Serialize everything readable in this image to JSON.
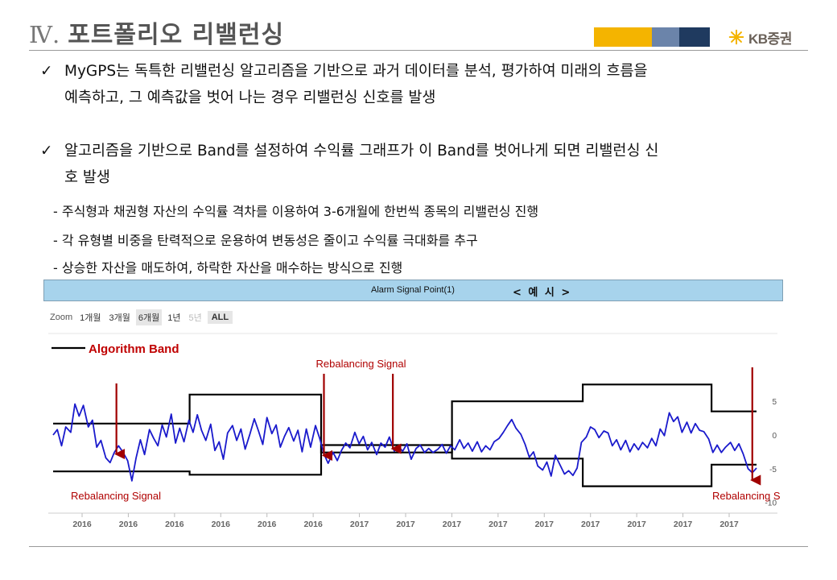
{
  "slide": {
    "section_number": "Ⅳ.",
    "title": "포트폴리오 리밸런싱",
    "stripe_colors": [
      "#f4b400",
      "#6b84aa",
      "#1f3a5f"
    ],
    "logo_text": "KB증권",
    "logo_color": "#f4b400"
  },
  "bullets": [
    {
      "check": "✓",
      "line1": "MyGPS는 독특한 리밸런싱 알고리즘을 기반으로 과거 데이터를 분석, 평가하여 미래의 흐름을",
      "line2": "예측하고,    그 예측값을 벗어 나는 경우 리밸런싱 신호를 발생"
    },
    {
      "check": "✓",
      "line1": "알고리즘을 기반으로 Band를 설정하여 수익률 그래프가 이 Band를 벗어나게 되면 리밸런싱 신",
      "line2": "호 발생"
    }
  ],
  "sub_points": [
    "- 주식형과 채권형 자산의 수익률 격차를 이용하여 3-6개월에 한번씩 종목의 리밸런싱 진행",
    "- 각 유형별 비중을 탄력적으로 운용하여 변동성은 줄이고 수익률 극대화를 추구",
    "- 상승한 자산을 매도하여, 하락한 자산을 매수하는 방식으로 진행"
  ],
  "chart_header": {
    "title": "Alarm Signal Point(1)",
    "example_label": "< 예  시 >"
  },
  "zoom": {
    "label": "Zoom",
    "buttons": [
      "1개월",
      "3개월",
      "6개월",
      "1년",
      "5년",
      "ALL"
    ],
    "active": "6개월",
    "disabled": [
      "5년"
    ]
  },
  "chart_data": {
    "type": "line",
    "legend": "Algorithm  Band",
    "x_tick_labels": [
      "2016",
      "2016",
      "2016",
      "2016",
      "2016",
      "2016",
      "2017",
      "2017",
      "2017",
      "2017",
      "2017",
      "2017",
      "2017",
      "2017",
      "2017"
    ],
    "y_tick_labels": [
      "5",
      "0",
      "-5",
      "-10"
    ],
    "signal_label": "Rebalancing Signal",
    "band_upper": [
      [
        0,
        1.7
      ],
      [
        19.4,
        1.7
      ],
      [
        19.4,
        6.0
      ],
      [
        38.1,
        6.0
      ],
      [
        38.1,
        -2.6
      ],
      [
        56.7,
        -2.6
      ],
      [
        56.7,
        5.0
      ],
      [
        75.3,
        5.0
      ],
      [
        75.3,
        7.5
      ],
      [
        93.6,
        7.5
      ],
      [
        93.6,
        3.5
      ],
      [
        100,
        3.5
      ]
    ],
    "band_lower": [
      [
        0,
        -5.4
      ],
      [
        19.4,
        -5.4
      ],
      [
        19.4,
        -5.9
      ],
      [
        38.1,
        -5.9
      ],
      [
        38.1,
        -1.5
      ],
      [
        56.7,
        -1.5
      ],
      [
        56.7,
        -3.5
      ],
      [
        75.3,
        -3.5
      ],
      [
        75.3,
        -7.6
      ],
      [
        93.6,
        -7.6
      ],
      [
        93.6,
        -4.4
      ],
      [
        100,
        -4.4
      ]
    ],
    "returns": [
      [
        0,
        0
      ],
      [
        0.6,
        0.8
      ],
      [
        1.2,
        -1.6
      ],
      [
        1.8,
        1.2
      ],
      [
        2.5,
        0.4
      ],
      [
        3.1,
        4.6
      ],
      [
        3.7,
        2.8
      ],
      [
        4.3,
        4.4
      ],
      [
        5.0,
        1.2
      ],
      [
        5.6,
        2.2
      ],
      [
        6.2,
        -1.8
      ],
      [
        6.8,
        -0.8
      ],
      [
        7.5,
        -3.4
      ],
      [
        8.1,
        -4.1
      ],
      [
        8.7,
        -2.6
      ],
      [
        9.3,
        -1.6
      ],
      [
        9.9,
        -2.5
      ],
      [
        10.6,
        -3.8
      ],
      [
        11.2,
        -6.8
      ],
      [
        11.8,
        -3.4
      ],
      [
        12.4,
        -0.7
      ],
      [
        13.0,
        -2.9
      ],
      [
        13.7,
        0.8
      ],
      [
        14.3,
        -0.5
      ],
      [
        14.9,
        -1.6
      ],
      [
        15.5,
        1.5
      ],
      [
        16.1,
        -0.3
      ],
      [
        16.8,
        3.1
      ],
      [
        17.4,
        -1.2
      ],
      [
        18.0,
        1.0
      ],
      [
        18.6,
        -1.0
      ],
      [
        19.3,
        2.2
      ],
      [
        19.9,
        0.4
      ],
      [
        20.5,
        3.0
      ],
      [
        21.1,
        0.7
      ],
      [
        21.7,
        -0.8
      ],
      [
        22.4,
        1.6
      ],
      [
        23.0,
        -2.3
      ],
      [
        23.6,
        -1.0
      ],
      [
        24.2,
        -3.6
      ],
      [
        24.8,
        0.3
      ],
      [
        25.5,
        1.4
      ],
      [
        26.1,
        -0.8
      ],
      [
        26.7,
        0.9
      ],
      [
        27.3,
        -2.1
      ],
      [
        28.0,
        0.2
      ],
      [
        28.6,
        2.4
      ],
      [
        29.2,
        0.6
      ],
      [
        29.8,
        -1.4
      ],
      [
        30.4,
        2.6
      ],
      [
        31.1,
        0.2
      ],
      [
        31.7,
        1.5
      ],
      [
        32.3,
        -1.8
      ],
      [
        32.9,
        -0.2
      ],
      [
        33.5,
        1.1
      ],
      [
        34.2,
        -0.9
      ],
      [
        34.8,
        0.7
      ],
      [
        35.4,
        -2.5
      ],
      [
        36.0,
        0.9
      ],
      [
        36.6,
        -1.8
      ],
      [
        37.3,
        1.4
      ],
      [
        37.9,
        -0.5
      ],
      [
        38.5,
        -2.8
      ],
      [
        39.1,
        -4.2
      ],
      [
        39.8,
        -2.6
      ],
      [
        40.4,
        -3.8
      ],
      [
        41.0,
        -2.3
      ],
      [
        41.6,
        -1.2
      ],
      [
        42.2,
        -1.9
      ],
      [
        42.9,
        0.4
      ],
      [
        43.5,
        -1.3
      ],
      [
        44.1,
        -0.2
      ],
      [
        44.7,
        -2.2
      ],
      [
        45.3,
        -1.1
      ],
      [
        46.0,
        -2.9
      ],
      [
        46.6,
        -1.2
      ],
      [
        47.2,
        -1.8
      ],
      [
        47.8,
        -0.3
      ],
      [
        48.5,
        -2.4
      ],
      [
        49.1,
        -1.7
      ],
      [
        49.7,
        -2.4
      ],
      [
        50.3,
        -1.3
      ],
      [
        50.9,
        -3.6
      ],
      [
        51.6,
        -2.0
      ],
      [
        52.2,
        -1.5
      ],
      [
        52.8,
        -2.6
      ],
      [
        53.4,
        -2.0
      ],
      [
        54.0,
        -2.6
      ],
      [
        54.7,
        -2.1
      ],
      [
        55.3,
        -1.4
      ],
      [
        55.9,
        -2.7
      ],
      [
        56.5,
        -1.6
      ],
      [
        57.1,
        -2.2
      ],
      [
        57.8,
        -0.7
      ],
      [
        58.4,
        -2.0
      ],
      [
        59.0,
        -1.2
      ],
      [
        59.6,
        -2.4
      ],
      [
        60.3,
        -1.0
      ],
      [
        60.9,
        -2.5
      ],
      [
        61.5,
        -1.6
      ],
      [
        62.1,
        -2.2
      ],
      [
        62.7,
        -1.0
      ],
      [
        63.4,
        -0.5
      ],
      [
        64.0,
        0.4
      ],
      [
        64.6,
        1.4
      ],
      [
        65.2,
        2.3
      ],
      [
        65.8,
        1.0
      ],
      [
        66.5,
        0.1
      ],
      [
        67.1,
        -1.4
      ],
      [
        67.7,
        -3.3
      ],
      [
        68.3,
        -2.5
      ],
      [
        68.9,
        -4.6
      ],
      [
        69.6,
        -5.2
      ],
      [
        70.2,
        -4.0
      ],
      [
        70.8,
        -6.1
      ],
      [
        71.4,
        -3.0
      ],
      [
        72.0,
        -4.3
      ],
      [
        72.7,
        -5.8
      ],
      [
        73.3,
        -5.3
      ],
      [
        73.9,
        -6.0
      ],
      [
        74.5,
        -4.9
      ],
      [
        75.1,
        -1.1
      ],
      [
        75.8,
        -0.3
      ],
      [
        76.4,
        1.2
      ],
      [
        77.0,
        0.8
      ],
      [
        77.6,
        -0.4
      ],
      [
        78.3,
        0.6
      ],
      [
        78.9,
        0.3
      ],
      [
        79.5,
        -1.6
      ],
      [
        80.1,
        -0.7
      ],
      [
        80.7,
        -2.2
      ],
      [
        81.4,
        -0.8
      ],
      [
        82.0,
        -2.5
      ],
      [
        82.6,
        -1.3
      ],
      [
        83.2,
        -2.2
      ],
      [
        83.8,
        -1.1
      ],
      [
        84.5,
        -1.9
      ],
      [
        85.1,
        -0.5
      ],
      [
        85.7,
        -1.6
      ],
      [
        86.3,
        0.9
      ],
      [
        86.9,
        -0.1
      ],
      [
        87.6,
        3.3
      ],
      [
        88.2,
        2.0
      ],
      [
        88.8,
        2.7
      ],
      [
        89.4,
        0.4
      ],
      [
        90.1,
        1.9
      ],
      [
        90.7,
        0.3
      ],
      [
        91.3,
        1.7
      ],
      [
        91.9,
        0.7
      ],
      [
        92.5,
        0.5
      ],
      [
        93.2,
        -0.6
      ],
      [
        93.8,
        -2.6
      ],
      [
        94.4,
        -1.5
      ],
      [
        95.0,
        -2.6
      ],
      [
        95.6,
        -1.8
      ],
      [
        96.3,
        -1.1
      ],
      [
        96.9,
        -2.3
      ],
      [
        97.5,
        -1.3
      ],
      [
        98.1,
        -2.8
      ],
      [
        98.8,
        -5.0
      ],
      [
        99.4,
        -5.6
      ],
      [
        100,
        -4.9
      ]
    ],
    "signals": [
      {
        "x": 9.0,
        "label_shown": true,
        "label_position": "below-left"
      },
      {
        "x": 38.5,
        "label_shown": true,
        "label_position": "above"
      },
      {
        "x": 48.3,
        "label_shown": false
      },
      {
        "x": 99.4,
        "label_shown": true,
        "label_position": "below-right"
      }
    ],
    "ylim": [
      -11,
      11
    ],
    "xlim": [
      0,
      100
    ],
    "colors": {
      "returns": "#1a1acc",
      "band": "#000000",
      "signal": "#a00000",
      "legend_text": "#c00000"
    }
  }
}
